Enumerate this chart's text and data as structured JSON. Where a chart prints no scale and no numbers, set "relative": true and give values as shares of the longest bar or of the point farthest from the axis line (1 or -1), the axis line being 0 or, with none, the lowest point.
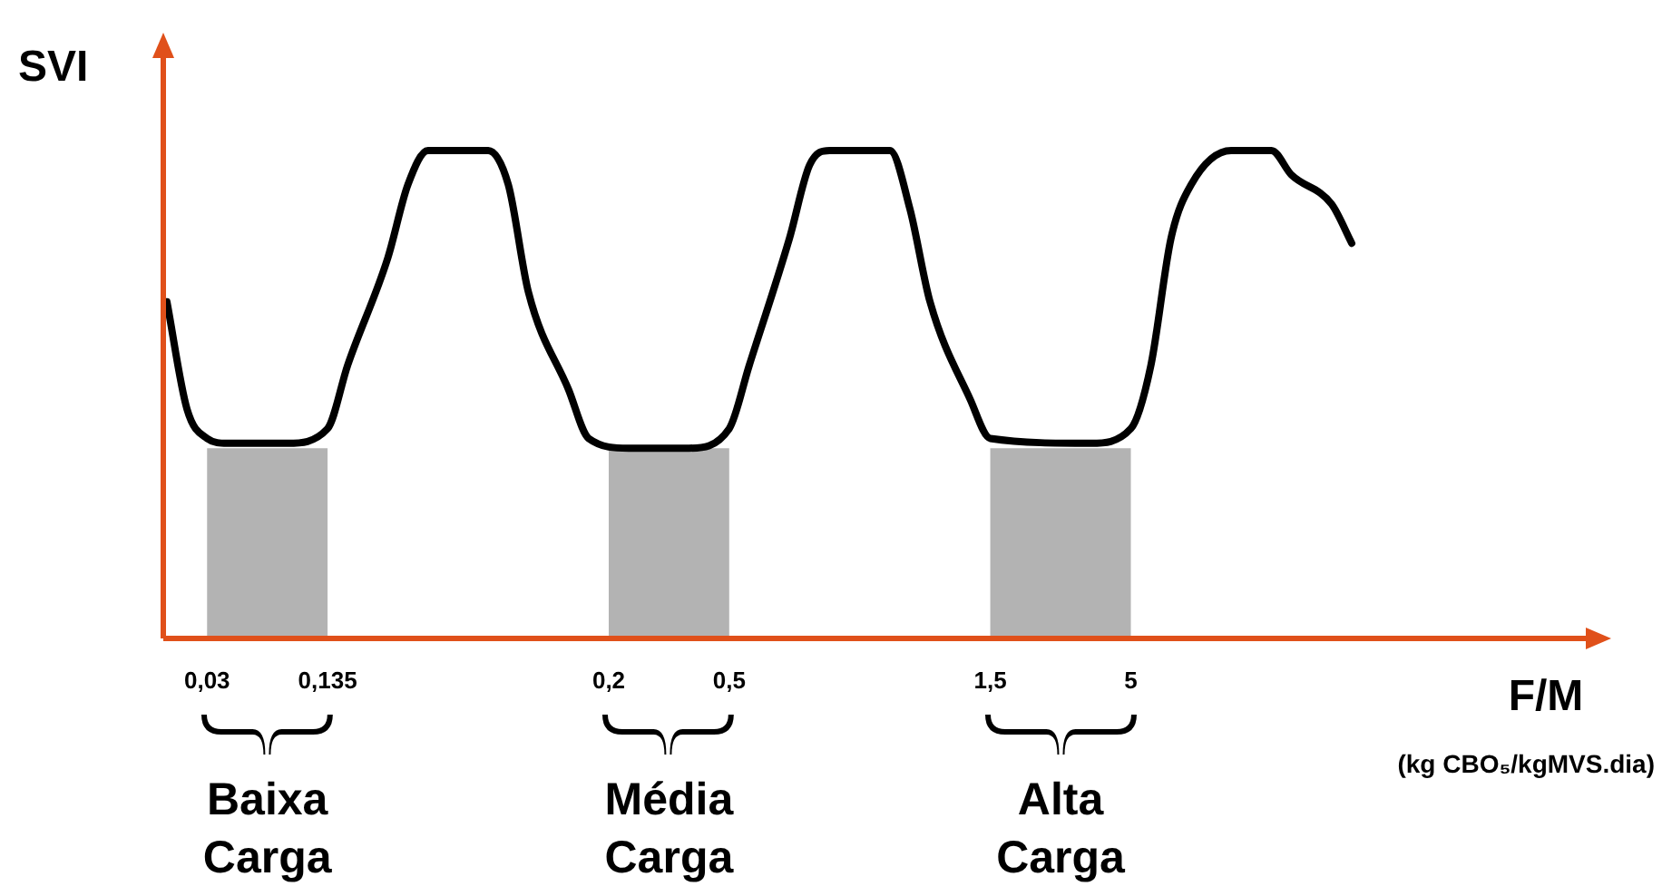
{
  "chart_data": {
    "type": "line",
    "relative": true,
    "xlabel": "F/M",
    "ylabel": "SVI",
    "tick_labels": "x",
    "grid": false,
    "legend": false,
    "marker": "none",
    "line_style": "solid",
    "categories": [
      null,
      null,
      "0,03",
      null,
      null,
      null,
      null,
      null,
      "0,135",
      null,
      null,
      null,
      null,
      null,
      null,
      null,
      null,
      null,
      null,
      null,
      null,
      null,
      "0,2",
      null,
      null,
      null,
      null,
      null,
      "0,5",
      null,
      null,
      null,
      null,
      null,
      null,
      null,
      null,
      null,
      null,
      null,
      null,
      "1,5",
      null,
      null,
      null,
      null,
      null,
      null,
      "5",
      null,
      null,
      null,
      null,
      null,
      null,
      null,
      null,
      null,
      null,
      null
    ],
    "series": [
      {
        "color": "#000000",
        "values": [
          0.69,
          0.47,
          0.41,
          0.4,
          null,
          null,
          0.4,
          null,
          0.43,
          0.56,
          null,
          0.78,
          0.93,
          1,
          null,
          null,
          1,
          0.93,
          0.71,
          null,
          0.51,
          0.41,
          null,
          0.39,
          null,
          null,
          0.39,
          null,
          0.43,
          0.56,
          null,
          0.82,
          0.97,
          1,
          null,
          null,
          1,
          0.88,
          0.69,
          null,
          0.49,
          0.41,
          null,
          null,
          null,
          null,
          0.4,
          null,
          0.43,
          0.56,
          0.82,
          0.93,
          null,
          1,
          null,
          1,
          0.95,
          null,
          0.89,
          0.81
        ]
      }
    ],
    "bands": [
      {
        "axis": "x",
        "from": "0,03",
        "to": "0,135",
        "label": "Baixa Carga",
        "color": "#b3b3b3"
      },
      {
        "axis": "x",
        "from": "0,2",
        "to": "0,5",
        "label": "Média Carga",
        "color": "#b3b3b3"
      },
      {
        "axis": "x",
        "from": "1,5",
        "to": "5",
        "label": "Alta Carga",
        "color": "#b3b3b3"
      }
    ],
    "annotations": [
      "(kg CBO₅/kgMVS.dia)"
    ]
  }
}
